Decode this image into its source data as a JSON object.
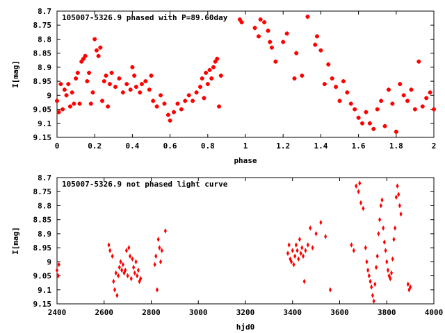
{
  "chart_data": [
    {
      "type": "scatter",
      "title": "105007-5326.9 phased with P=89.60day",
      "xlabel": "phase",
      "ylabel": "I[mag]",
      "xlim": [
        0,
        2
      ],
      "ylim": [
        9.15,
        8.7
      ],
      "y_inverted": true,
      "x_ticks": [
        0,
        0.2,
        0.4,
        0.6,
        0.8,
        1,
        1.2,
        1.4,
        1.6,
        1.8,
        2
      ],
      "x_tick_labels": [
        "0",
        "0.2",
        "0.4",
        "0.6",
        "0.8",
        "1",
        "1.2",
        "1.4",
        "1.6",
        "1.8",
        "2"
      ],
      "y_ticks": [
        8.7,
        8.75,
        8.8,
        8.85,
        8.9,
        8.95,
        9,
        9.05,
        9.1,
        9.15
      ],
      "y_tick_labels": [
        "8.7",
        "8.75",
        "8.8",
        "8.85",
        "8.9",
        "8.95",
        "9",
        "9.05",
        "9.1",
        "9.15"
      ],
      "marker_color": "#ff0000",
      "marker": "plus-cross",
      "series": [
        {
          "values": [
            [
              0.0,
              9.02
            ],
            [
              0.01,
              9.06
            ],
            [
              0.02,
              8.96
            ],
            [
              0.03,
              9.05
            ],
            [
              0.04,
              8.98
            ],
            [
              0.05,
              9.0
            ],
            [
              0.06,
              8.96
            ],
            [
              0.07,
              9.04
            ],
            [
              0.08,
              8.99
            ],
            [
              0.09,
              9.03
            ],
            [
              0.1,
              8.94
            ],
            [
              0.11,
              8.92
            ],
            [
              0.12,
              9.03
            ],
            [
              0.13,
              8.88
            ],
            [
              0.14,
              8.87
            ],
            [
              0.15,
              8.86
            ],
            [
              0.16,
              8.95
            ],
            [
              0.17,
              8.92
            ],
            [
              0.18,
              9.03
            ],
            [
              0.19,
              8.99
            ],
            [
              0.2,
              8.8
            ],
            [
              0.21,
              8.84
            ],
            [
              0.22,
              8.86
            ],
            [
              0.23,
              8.83
            ],
            [
              0.24,
              9.02
            ],
            [
              0.25,
              8.95
            ],
            [
              0.26,
              8.93
            ],
            [
              0.27,
              9.04
            ],
            [
              0.28,
              8.96
            ],
            [
              0.29,
              8.92
            ],
            [
              0.31,
              8.97
            ],
            [
              0.33,
              8.94
            ],
            [
              0.35,
              8.99
            ],
            [
              0.37,
              8.96
            ],
            [
              0.39,
              8.98
            ],
            [
              0.4,
              8.9
            ],
            [
              0.41,
              8.93
            ],
            [
              0.42,
              8.97
            ],
            [
              0.44,
              8.99
            ],
            [
              0.45,
              8.96
            ],
            [
              0.47,
              8.95
            ],
            [
              0.49,
              8.98
            ],
            [
              0.5,
              8.93
            ],
            [
              0.51,
              9.02
            ],
            [
              0.53,
              9.04
            ],
            [
              0.55,
              9.0
            ],
            [
              0.57,
              9.03
            ],
            [
              0.59,
              9.07
            ],
            [
              0.6,
              9.09
            ],
            [
              0.62,
              9.06
            ],
            [
              0.64,
              9.03
            ],
            [
              0.66,
              9.05
            ],
            [
              0.68,
              9.02
            ],
            [
              0.7,
              9.0
            ],
            [
              0.72,
              9.02
            ],
            [
              0.74,
              8.99
            ],
            [
              0.76,
              8.97
            ],
            [
              0.77,
              8.94
            ],
            [
              0.78,
              9.01
            ],
            [
              0.79,
              8.92
            ],
            [
              0.8,
              8.96
            ],
            [
              0.81,
              8.91
            ],
            [
              0.82,
              8.94
            ],
            [
              0.83,
              8.9
            ],
            [
              0.84,
              8.88
            ],
            [
              0.85,
              8.87
            ],
            [
              0.86,
              9.04
            ],
            [
              0.87,
              8.93
            ]
          ]
        },
        {
          "values": [
            [
              0.97,
              8.73
            ],
            [
              0.98,
              8.74
            ],
            [
              1.05,
              8.76
            ],
            [
              1.07,
              8.79
            ],
            [
              1.08,
              8.73
            ],
            [
              1.1,
              8.74
            ],
            [
              1.12,
              8.77
            ],
            [
              1.13,
              8.81
            ],
            [
              1.14,
              8.83
            ],
            [
              1.16,
              8.88
            ],
            [
              1.2,
              8.81
            ],
            [
              1.22,
              8.78
            ],
            [
              1.26,
              8.94
            ],
            [
              1.27,
              8.85
            ],
            [
              1.3,
              8.93
            ],
            [
              1.33,
              8.72
            ],
            [
              1.37,
              8.82
            ],
            [
              1.38,
              8.79
            ],
            [
              1.4,
              8.84
            ],
            [
              1.42,
              8.96
            ],
            [
              1.44,
              8.89
            ],
            [
              1.46,
              8.94
            ],
            [
              1.48,
              8.97
            ],
            [
              1.5,
              9.02
            ],
            [
              1.52,
              8.95
            ],
            [
              1.54,
              8.99
            ],
            [
              1.56,
              9.03
            ],
            [
              1.58,
              9.05
            ],
            [
              1.6,
              9.08
            ],
            [
              1.62,
              9.1
            ],
            [
              1.64,
              9.06
            ],
            [
              1.66,
              9.1
            ],
            [
              1.68,
              9.12
            ],
            [
              1.7,
              9.05
            ],
            [
              1.72,
              9.02
            ],
            [
              1.74,
              9.11
            ],
            [
              1.76,
              8.98
            ],
            [
              1.78,
              9.03
            ],
            [
              1.8,
              9.13
            ],
            [
              1.82,
              8.96
            ],
            [
              1.84,
              9.0
            ],
            [
              1.86,
              9.02
            ],
            [
              1.88,
              8.98
            ],
            [
              1.9,
              9.05
            ],
            [
              1.92,
              8.88
            ],
            [
              1.94,
              9.04
            ],
            [
              1.96,
              9.01
            ],
            [
              1.98,
              8.99
            ],
            [
              2.0,
              9.05
            ]
          ]
        }
      ]
    },
    {
      "type": "scatter",
      "title": "105007-5326.9 not phased light curve",
      "xlabel": "hjd0",
      "ylabel": "I[mag]",
      "xlim": [
        2400,
        4000
      ],
      "ylim": [
        9.15,
        8.7
      ],
      "y_inverted": true,
      "x_ticks": [
        2400,
        2600,
        2800,
        3000,
        3200,
        3400,
        3600,
        3800,
        4000
      ],
      "x_tick_labels": [
        "2400",
        "2600",
        "2800",
        "3000",
        "3200",
        "3400",
        "3600",
        "3800",
        "4000"
      ],
      "y_ticks": [
        8.7,
        8.75,
        8.8,
        8.85,
        8.9,
        8.95,
        9,
        9.05,
        9.1,
        9.15
      ],
      "y_tick_labels": [
        "8.7",
        "8.75",
        "8.8",
        "8.85",
        "8.9",
        "8.95",
        "9",
        "9.05",
        "9.1",
        "9.15"
      ],
      "marker_color": "#ff0000",
      "marker": "small-diamond",
      "series": [
        {
          "values": [
            [
              2400,
              9.03
            ],
            [
              2405,
              9.05
            ],
            [
              2408,
              9.01
            ],
            [
              2620,
              8.94
            ],
            [
              2625,
              8.96
            ],
            [
              2635,
              8.98
            ],
            [
              2640,
              9.07
            ],
            [
              2645,
              9.1
            ],
            [
              2650,
              9.04
            ],
            [
              2655,
              9.12
            ],
            [
              2660,
              9.05
            ],
            [
              2665,
              9.02
            ],
            [
              2670,
              9.0
            ],
            [
              2675,
              9.03
            ],
            [
              2680,
              9.01
            ],
            [
              2685,
              9.04
            ],
            [
              2690,
              9.03
            ],
            [
              2695,
              8.96
            ],
            [
              2700,
              9.05
            ],
            [
              2705,
              8.95
            ],
            [
              2710,
              8.98
            ],
            [
              2715,
              9.06
            ],
            [
              2720,
              8.99
            ],
            [
              2725,
              9.02
            ],
            [
              2730,
              9.04
            ],
            [
              2735,
              9.0
            ],
            [
              2740,
              9.05
            ],
            [
              2745,
              9.03
            ],
            [
              2750,
              9.07
            ],
            [
              2755,
              9.06
            ],
            [
              2815,
              9.01
            ],
            [
              2820,
              8.98
            ],
            [
              2825,
              9.1
            ],
            [
              2830,
              8.92
            ],
            [
              2835,
              8.95
            ],
            [
              2840,
              9.0
            ],
            [
              2845,
              8.96
            ],
            [
              2860,
              8.89
            ],
            [
              3380,
              8.97
            ],
            [
              3385,
              8.94
            ],
            [
              3390,
              8.99
            ],
            [
              3395,
              9.0
            ],
            [
              3400,
              8.96
            ],
            [
              3405,
              9.01
            ],
            [
              3410,
              8.98
            ],
            [
              3415,
              8.94
            ],
            [
              3420,
              8.96
            ],
            [
              3425,
              8.99
            ],
            [
              3430,
              8.92
            ],
            [
              3435,
              8.97
            ],
            [
              3440,
              8.95
            ],
            [
              3445,
              8.98
            ],
            [
              3450,
              9.07
            ],
            [
              3455,
              8.96
            ],
            [
              3465,
              8.94
            ],
            [
              3475,
              8.88
            ],
            [
              3485,
              8.95
            ],
            [
              3500,
              8.9
            ],
            [
              3520,
              8.86
            ],
            [
              3540,
              8.91
            ],
            [
              3560,
              9.1
            ],
            [
              3650,
              8.94
            ],
            [
              3660,
              8.96
            ],
            [
              3670,
              8.73
            ],
            [
              3680,
              8.75
            ],
            [
              3685,
              8.72
            ],
            [
              3690,
              8.79
            ],
            [
              3700,
              8.81
            ],
            [
              3710,
              8.95
            ],
            [
              3715,
              9.0
            ],
            [
              3720,
              9.03
            ],
            [
              3725,
              9.05
            ],
            [
              3730,
              9.07
            ],
            [
              3735,
              9.09
            ],
            [
              3740,
              9.12
            ],
            [
              3745,
              9.14
            ],
            [
              3750,
              9.08
            ],
            [
              3755,
              9.02
            ],
            [
              3760,
              8.98
            ],
            [
              3765,
              8.9
            ],
            [
              3770,
              8.85
            ],
            [
              3775,
              8.8
            ],
            [
              3780,
              8.78
            ],
            [
              3785,
              8.88
            ],
            [
              3790,
              8.93
            ],
            [
              3795,
              8.96
            ],
            [
              3800,
              9.0
            ],
            [
              3805,
              9.03
            ],
            [
              3810,
              9.05
            ],
            [
              3815,
              9.06
            ],
            [
              3820,
              9.04
            ],
            [
              3825,
              8.99
            ],
            [
              3830,
              8.92
            ],
            [
              3835,
              8.88
            ],
            [
              3840,
              8.77
            ],
            [
              3845,
              8.73
            ],
            [
              3850,
              8.76
            ],
            [
              3855,
              8.8
            ],
            [
              3860,
              8.83
            ],
            [
              3890,
              9.08
            ],
            [
              3895,
              9.1
            ],
            [
              3900,
              9.09
            ]
          ]
        }
      ]
    }
  ]
}
